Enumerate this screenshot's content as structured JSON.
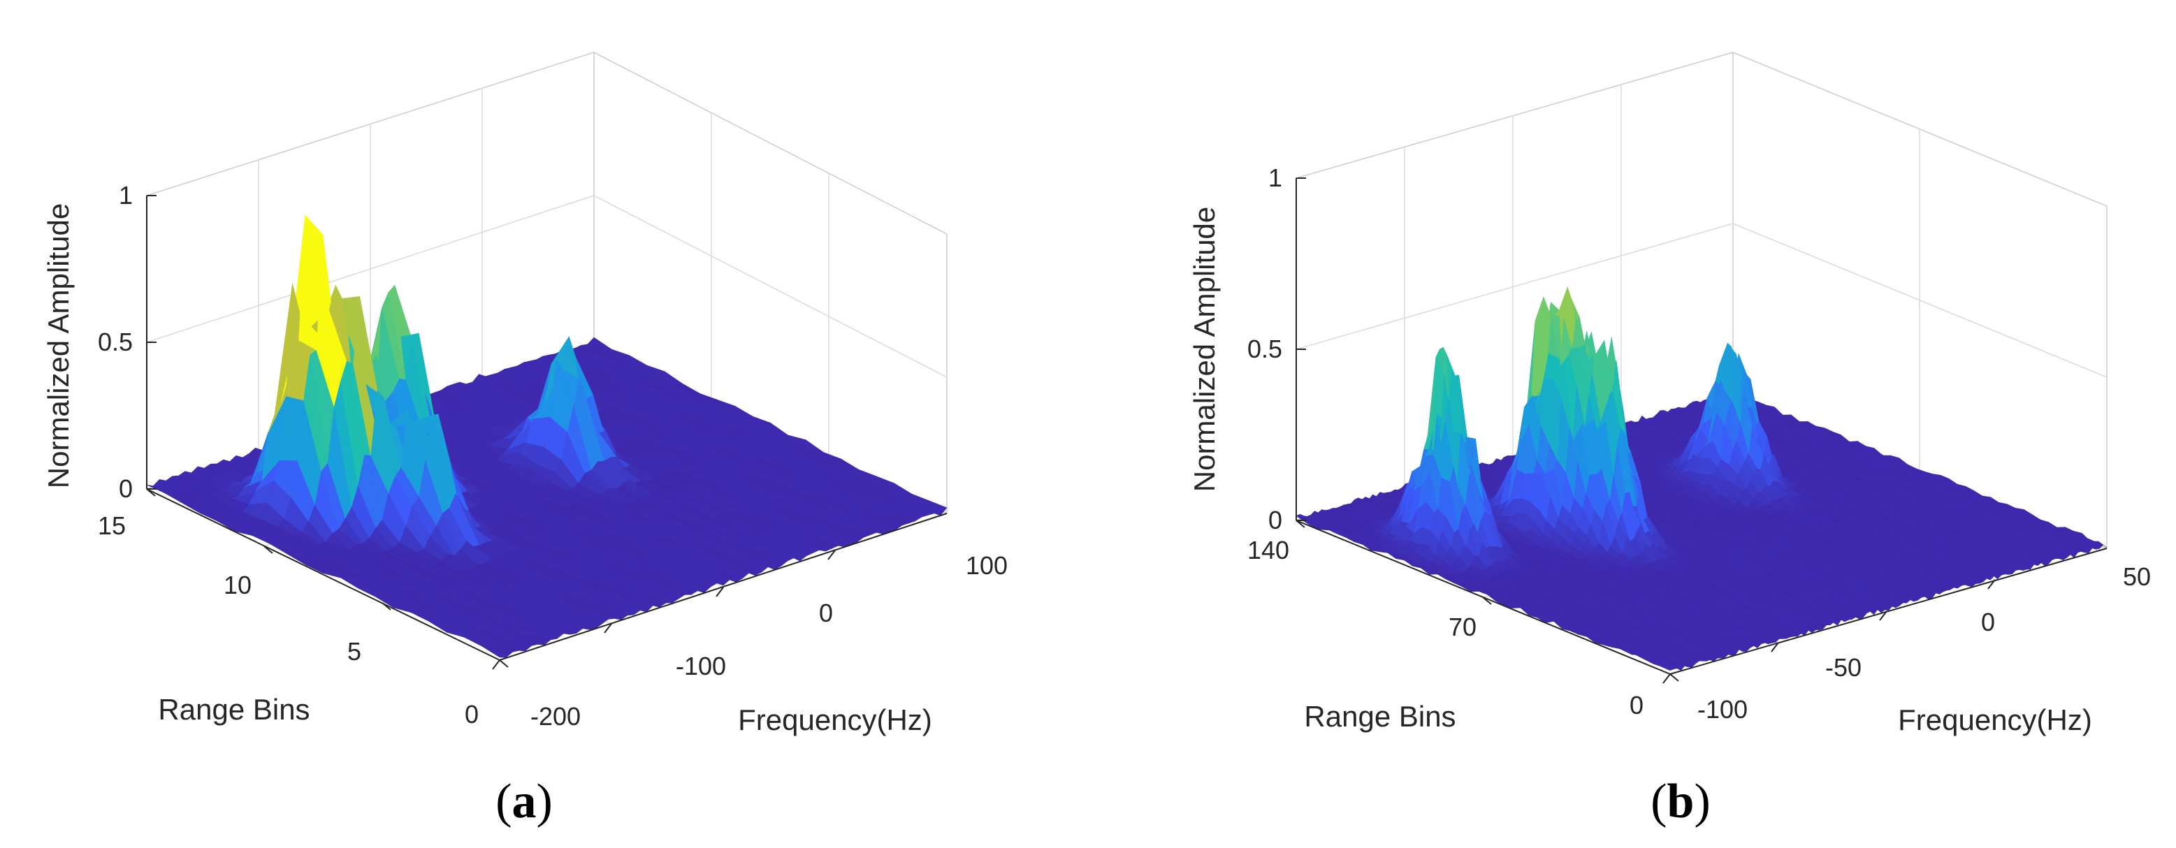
{
  "chart_data": [
    {
      "id": "a",
      "type": "surface3d",
      "caption": "(a)",
      "caption_letter": "a",
      "xlabel": "Frequency(Hz)",
      "ylabel": "Range Bins",
      "zlabel": "Normalized Amplitude",
      "x_ticks": [
        "-200",
        "-100",
        "0",
        "100"
      ],
      "y_ticks": [
        "0",
        "5",
        "10",
        "15"
      ],
      "z_ticks": [
        "0",
        "0.5",
        "1"
      ],
      "xlim": [
        -250,
        150
      ],
      "ylim": [
        0,
        15
      ],
      "zlim": [
        0,
        1
      ],
      "colormap": "parula",
      "peaks": [
        {
          "freq": -190,
          "range": 11,
          "amplitude": 1.0
        },
        {
          "freq": -170,
          "range": 10,
          "amplitude": 0.75
        },
        {
          "freq": -110,
          "range": 11,
          "amplitude": 0.82
        },
        {
          "freq": -150,
          "range": 8,
          "amplitude": 0.55
        },
        {
          "freq": 0,
          "range": 9,
          "amplitude": 0.52
        }
      ]
    },
    {
      "id": "b",
      "type": "surface3d",
      "caption": "(b)",
      "caption_letter": "b",
      "xlabel": "Frequency(Hz)",
      "ylabel": "Range Bins",
      "zlabel": "Normalized Amplitude",
      "x_ticks": [
        "-100",
        "-50",
        "0",
        "50"
      ],
      "y_ticks": [
        "0",
        "70",
        "140"
      ],
      "z_ticks": [
        "0",
        "0.5",
        "1"
      ],
      "xlim": [
        -120,
        75
      ],
      "ylim": [
        0,
        140
      ],
      "zlim": [
        0,
        1
      ],
      "colormap": "parula",
      "peaks": [
        {
          "freq": -100,
          "range": 100,
          "amplitude": 0.65
        },
        {
          "freq": -60,
          "range": 95,
          "amplitude": 0.72
        },
        {
          "freq": -55,
          "range": 80,
          "amplitude": 0.68
        },
        {
          "freq": 15,
          "range": 90,
          "amplitude": 0.45
        }
      ]
    }
  ]
}
